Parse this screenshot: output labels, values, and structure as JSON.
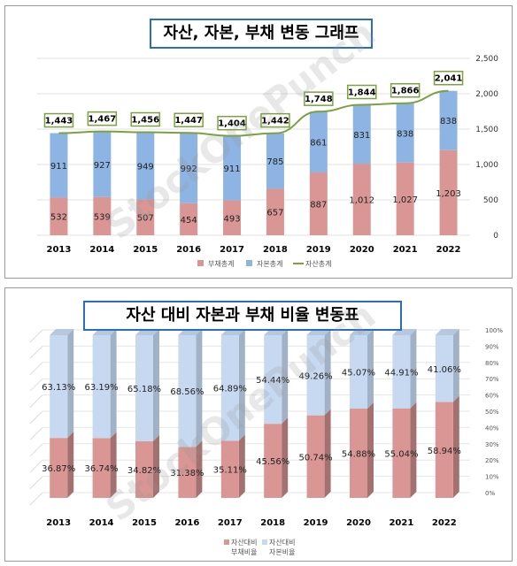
{
  "chart_data": [
    {
      "type": "bar",
      "stacked": true,
      "title": "자산, 자본, 부채 변동 그래프",
      "categories": [
        "2013",
        "2014",
        "2015",
        "2016",
        "2017",
        "2018",
        "2019",
        "2020",
        "2021",
        "2022"
      ],
      "series": [
        {
          "name": "부채총계",
          "color": "#d99694",
          "values": [
            532,
            539,
            507,
            454,
            493,
            657,
            887,
            1012,
            1027,
            1203
          ]
        },
        {
          "name": "자본총계",
          "color": "#8db4e2",
          "values": [
            911,
            927,
            949,
            992,
            911,
            785,
            861,
            831,
            838,
            838
          ]
        },
        {
          "name": "자산총계",
          "type": "line",
          "color": "#7ba23f",
          "values": [
            1443,
            1467,
            1456,
            1447,
            1404,
            1442,
            1748,
            1844,
            1866,
            2041
          ]
        }
      ],
      "ylim": [
        0,
        2500
      ],
      "yticks": [
        0,
        500,
        1000,
        1500,
        2000,
        2500
      ],
      "ytick_labels": [
        "0",
        "500",
        "1,000",
        "1,500",
        "2,000",
        "2,500"
      ],
      "y_axis_side": "right",
      "grid": true,
      "legend": "bottom"
    },
    {
      "type": "bar",
      "stacked": true,
      "percent": true,
      "style": "3d",
      "title": "자산 대비 자본과 부채 비율 변동표",
      "categories": [
        "2013",
        "2014",
        "2015",
        "2016",
        "2017",
        "2018",
        "2019",
        "2020",
        "2021",
        "2022"
      ],
      "series": [
        {
          "name": "자산대비 부채비율",
          "color": "#d99694",
          "values": [
            36.87,
            36.74,
            34.82,
            31.38,
            35.11,
            45.56,
            50.74,
            54.88,
            55.04,
            58.94
          ],
          "labels": [
            "36.87%",
            "36.74%",
            "34.82%",
            "31.38%",
            "35.11%",
            "45.56%",
            "50.74%",
            "54.88%",
            "55.04%",
            "58.94%"
          ]
        },
        {
          "name": "자산대비 자본비율",
          "color": "#c6d9f1",
          "values": [
            63.13,
            63.19,
            65.18,
            68.56,
            64.89,
            54.44,
            49.26,
            45.07,
            44.91,
            41.06
          ],
          "labels": [
            "63.13%",
            "63.19%",
            "65.18%",
            "68.56%",
            "64.89%",
            "54.44%",
            "49.26%",
            "45.07%",
            "44.91%",
            "41.06%"
          ]
        }
      ],
      "ylim": [
        0,
        100
      ],
      "yticks": [
        0,
        10,
        20,
        30,
        40,
        50,
        60,
        70,
        80,
        90,
        100
      ],
      "ytick_labels": [
        "0%",
        "10%",
        "20%",
        "30%",
        "40%",
        "50%",
        "60%",
        "70%",
        "80%",
        "90%",
        "100%"
      ],
      "y_axis_side": "right",
      "grid": true,
      "legend": "bottom"
    }
  ],
  "watermark": "StockOnePunch"
}
